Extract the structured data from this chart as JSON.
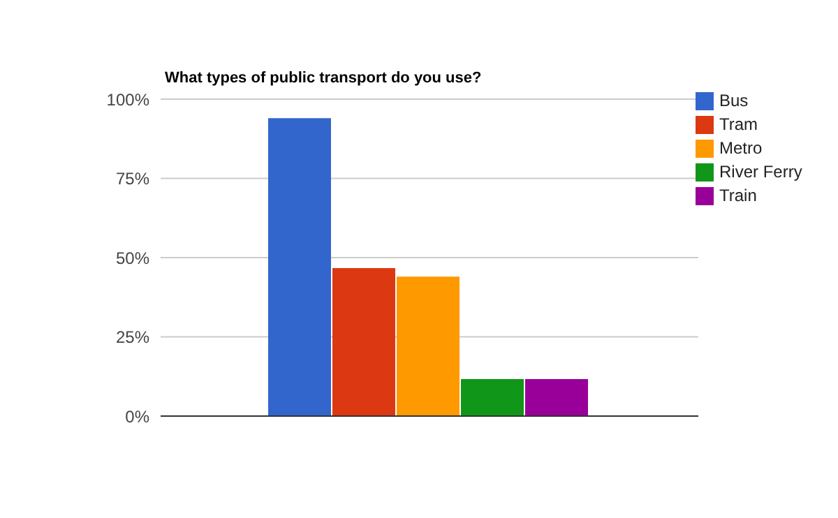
{
  "chart_data": {
    "type": "bar",
    "title": "What types of public transport do you use?",
    "categories": [
      null
    ],
    "series": [
      {
        "name": "Bus",
        "color": "#3366cc",
        "values": [
          94
        ]
      },
      {
        "name": "Tram",
        "color": "#dc3912",
        "values": [
          46.7
        ]
      },
      {
        "name": "Metro",
        "color": "#ff9900",
        "values": [
          44
        ]
      },
      {
        "name": "River Ferry",
        "color": "#109618",
        "values": [
          11.7
        ]
      },
      {
        "name": "Train",
        "color": "#990099",
        "values": [
          11.7
        ]
      }
    ],
    "ylim": [
      0,
      100
    ],
    "yticks": [
      {
        "value": 0,
        "label": "0%"
      },
      {
        "value": 25,
        "label": "25%"
      },
      {
        "value": 50,
        "label": "50%"
      },
      {
        "value": 75,
        "label": "75%"
      },
      {
        "value": 100,
        "label": "100%"
      }
    ],
    "grid": "y",
    "legend": "right"
  }
}
